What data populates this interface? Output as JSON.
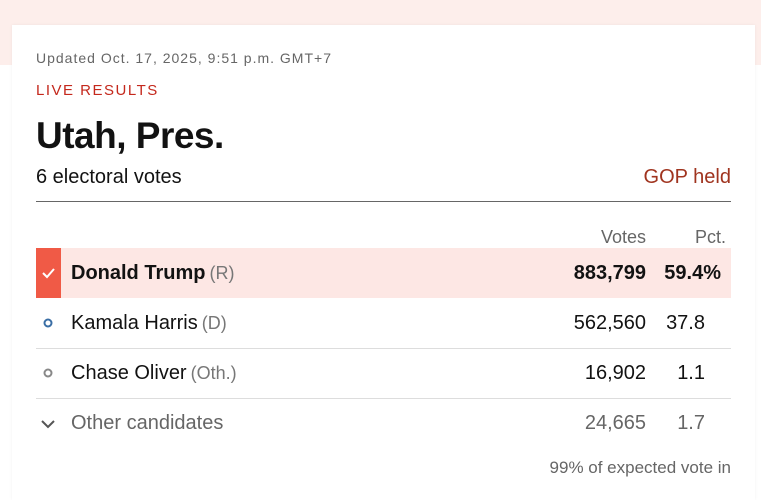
{
  "header": {
    "updated": "Updated Oct. 17, 2025, 9:51 p.m. GMT+7",
    "status": "LIVE RESULTS",
    "title": "Utah, Pres.",
    "electoral_votes": "6 electoral votes",
    "result": "GOP held"
  },
  "table": {
    "columns": [
      "Votes",
      "Pct."
    ],
    "rows": [
      {
        "name": "Donald Trump",
        "party": "(R)",
        "votes": "883,799",
        "pct": "59.4%"
      },
      {
        "name": "Kamala Harris",
        "party": "(D)",
        "votes": "562,560",
        "pct": "37.8"
      },
      {
        "name": "Chase Oliver",
        "party": "(Oth.)",
        "votes": "16,902",
        "pct": "1.1"
      },
      {
        "name": "Other candidates",
        "votes": "24,665",
        "pct": "1.7"
      }
    ],
    "footer": "99% of expected vote in"
  }
}
